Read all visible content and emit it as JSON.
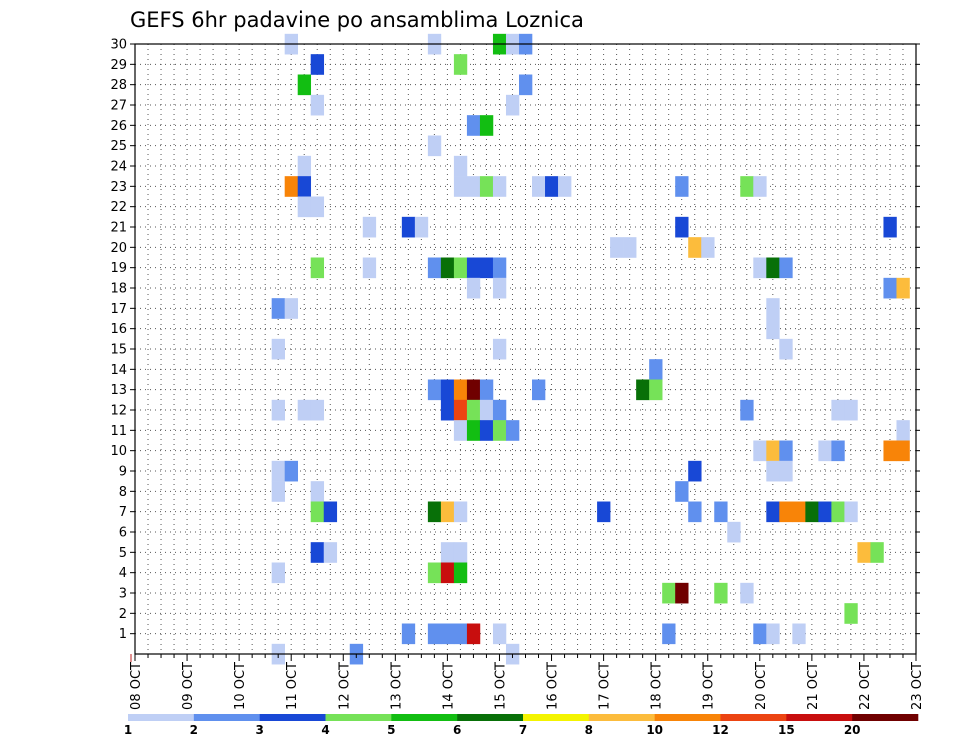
{
  "chart_data": {
    "type": "heatmap",
    "title": "GEFS 6hr padavine po ansamblima Loznica",
    "xlabel": "",
    "ylabel": "",
    "x_ticks": [
      "08 OCT",
      "09 OCT",
      "10 OCT",
      "11 OCT",
      "12 OCT",
      "13 OCT",
      "14 OCT",
      "15 OCT",
      "16 OCT",
      "17 OCT",
      "18 OCT",
      "19 OCT",
      "20 OCT",
      "21 OCT",
      "22 OCT",
      "23 OCT"
    ],
    "x_unit": "6-hour step (4 steps per day, step 0 = 08 OCT 00Z)",
    "y_ticks": [
      1,
      2,
      3,
      4,
      5,
      6,
      7,
      8,
      9,
      10,
      11,
      12,
      13,
      14,
      15,
      16,
      17,
      18,
      19,
      20,
      21,
      22,
      23,
      24,
      25,
      26,
      27,
      28,
      29,
      30
    ],
    "ylim": [
      0,
      30
    ],
    "grid": true,
    "colorbar": {
      "levels": [
        "1",
        "2",
        "3",
        "4",
        "5",
        "6",
        "7",
        "8",
        "10",
        "12",
        "15",
        "20"
      ],
      "colors": [
        "#bfcff5",
        "#6090ee",
        "#1848d6",
        "#76e258",
        "#12be12",
        "#087008",
        "#f4f400",
        "#fcbc3c",
        "#f88408",
        "#ec4412",
        "#c80e0e",
        "#700000"
      ]
    },
    "cells": [
      [
        12,
        30,
        0
      ],
      [
        23,
        30,
        0
      ],
      [
        28,
        30,
        4
      ],
      [
        29,
        30,
        0
      ],
      [
        30,
        30,
        1
      ],
      [
        14,
        29,
        2
      ],
      [
        25,
        29,
        3
      ],
      [
        13,
        28,
        4
      ],
      [
        30,
        28,
        1
      ],
      [
        14,
        27,
        0
      ],
      [
        29,
        27,
        0
      ],
      [
        26,
        26,
        1
      ],
      [
        27,
        26,
        4
      ],
      [
        23,
        25,
        0
      ],
      [
        13,
        24,
        0
      ],
      [
        25,
        24,
        0
      ],
      [
        12,
        23,
        8
      ],
      [
        13,
        23,
        2
      ],
      [
        25,
        23,
        0
      ],
      [
        26,
        23,
        0
      ],
      [
        27,
        23,
        3
      ],
      [
        28,
        23,
        0
      ],
      [
        31,
        23,
        0
      ],
      [
        32,
        23,
        2
      ],
      [
        33,
        23,
        0
      ],
      [
        42,
        23,
        1
      ],
      [
        47,
        23,
        3
      ],
      [
        48,
        23,
        0
      ],
      [
        13,
        22,
        0
      ],
      [
        14,
        22,
        0
      ],
      [
        18,
        21,
        0
      ],
      [
        21,
        21,
        2
      ],
      [
        22,
        21,
        0
      ],
      [
        42,
        21,
        2
      ],
      [
        58,
        21,
        2
      ],
      [
        37,
        20,
        0
      ],
      [
        38,
        20,
        0
      ],
      [
        43,
        20,
        7
      ],
      [
        44,
        20,
        0
      ],
      [
        14,
        19,
        3
      ],
      [
        18,
        19,
        0
      ],
      [
        23,
        19,
        1
      ],
      [
        24,
        19,
        5
      ],
      [
        25,
        19,
        3
      ],
      [
        26,
        19,
        2
      ],
      [
        27,
        19,
        2
      ],
      [
        28,
        19,
        1
      ],
      [
        48,
        19,
        0
      ],
      [
        49,
        19,
        5
      ],
      [
        50,
        19,
        1
      ],
      [
        26,
        18,
        0
      ],
      [
        28,
        18,
        0
      ],
      [
        58,
        18,
        1
      ],
      [
        59,
        18,
        7
      ],
      [
        11,
        17,
        1
      ],
      [
        12,
        17,
        0
      ],
      [
        49,
        17,
        0
      ],
      [
        49,
        16,
        0
      ],
      [
        11,
        15,
        0
      ],
      [
        28,
        15,
        0
      ],
      [
        50,
        15,
        0
      ],
      [
        40,
        14,
        1
      ],
      [
        23,
        13,
        1
      ],
      [
        24,
        13,
        2
      ],
      [
        25,
        13,
        8
      ],
      [
        26,
        13,
        11
      ],
      [
        27,
        13,
        1
      ],
      [
        31,
        13,
        1
      ],
      [
        39,
        13,
        5
      ],
      [
        40,
        13,
        3
      ],
      [
        11,
        12,
        0
      ],
      [
        13,
        12,
        0
      ],
      [
        14,
        12,
        0
      ],
      [
        24,
        12,
        2
      ],
      [
        25,
        12,
        9
      ],
      [
        26,
        12,
        3
      ],
      [
        27,
        12,
        0
      ],
      [
        28,
        12,
        1
      ],
      [
        47,
        12,
        1
      ],
      [
        54,
        12,
        0
      ],
      [
        55,
        12,
        0
      ],
      [
        25,
        11,
        0
      ],
      [
        26,
        11,
        4
      ],
      [
        27,
        11,
        2
      ],
      [
        28,
        11,
        3
      ],
      [
        29,
        11,
        1
      ],
      [
        59,
        11,
        0
      ],
      [
        48,
        10,
        0
      ],
      [
        49,
        10,
        7
      ],
      [
        50,
        10,
        1
      ],
      [
        53,
        10,
        0
      ],
      [
        54,
        10,
        1
      ],
      [
        58,
        10,
        8
      ],
      [
        59,
        10,
        8
      ],
      [
        11,
        9,
        0
      ],
      [
        12,
        9,
        1
      ],
      [
        43,
        9,
        2
      ],
      [
        49,
        9,
        0
      ],
      [
        50,
        9,
        0
      ],
      [
        11,
        8,
        0
      ],
      [
        14,
        8,
        0
      ],
      [
        42,
        8,
        1
      ],
      [
        14,
        7,
        3
      ],
      [
        15,
        7,
        2
      ],
      [
        23,
        7,
        5
      ],
      [
        24,
        7,
        7
      ],
      [
        25,
        7,
        0
      ],
      [
        36,
        7,
        2
      ],
      [
        43,
        7,
        1
      ],
      [
        45,
        7,
        1
      ],
      [
        49,
        7,
        2
      ],
      [
        50,
        7,
        8
      ],
      [
        51,
        7,
        8
      ],
      [
        52,
        7,
        5
      ],
      [
        53,
        7,
        2
      ],
      [
        54,
        7,
        3
      ],
      [
        55,
        7,
        0
      ],
      [
        46,
        6,
        0
      ],
      [
        14,
        5,
        2
      ],
      [
        15,
        5,
        0
      ],
      [
        24,
        5,
        0
      ],
      [
        25,
        5,
        0
      ],
      [
        56,
        5,
        7
      ],
      [
        57,
        5,
        3
      ],
      [
        11,
        4,
        0
      ],
      [
        23,
        4,
        3
      ],
      [
        24,
        4,
        10
      ],
      [
        25,
        4,
        4
      ],
      [
        41,
        3,
        3
      ],
      [
        42,
        3,
        11
      ],
      [
        45,
        3,
        3
      ],
      [
        47,
        3,
        0
      ],
      [
        55,
        2,
        3
      ],
      [
        21,
        1,
        1
      ],
      [
        23,
        1,
        1
      ],
      [
        24,
        1,
        1
      ],
      [
        25,
        1,
        1
      ],
      [
        26,
        1,
        10
      ],
      [
        28,
        1,
        0
      ],
      [
        41,
        1,
        1
      ],
      [
        48,
        1,
        1
      ],
      [
        49,
        1,
        0
      ],
      [
        51,
        1,
        0
      ],
      [
        11,
        0,
        0
      ],
      [
        17,
        0,
        1
      ],
      [
        29,
        0,
        0
      ]
    ]
  }
}
